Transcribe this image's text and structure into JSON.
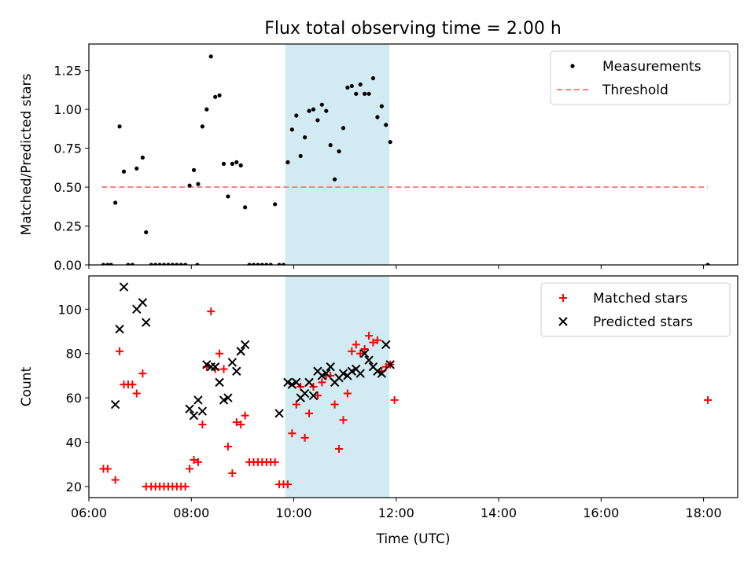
{
  "title": "Flux total observing time = 2.00 h",
  "colors": {
    "measurement": "#000000",
    "threshold": "#ff8080",
    "matched": "#ff0000",
    "predicted": "#000000",
    "shade": "#add8e6"
  },
  "chart_data": [
    {
      "type": "scatter",
      "panel": "top",
      "ylabel": "Matched/Predicted stars",
      "xlabel": "",
      "xlim": [
        "06:00",
        "18:40"
      ],
      "ylim": [
        0,
        1.42
      ],
      "yticks": [
        "0.00",
        "0.25",
        "0.50",
        "0.75",
        "1.00",
        "1.25"
      ],
      "shaded_interval": [
        "09:50",
        "11:52"
      ],
      "legend": {
        "position": "top-right",
        "entries": [
          "Measurements",
          "Threshold"
        ]
      },
      "threshold": {
        "name": "Threshold",
        "value": 0.5,
        "x_range": [
          "06:15",
          "18:05"
        ]
      },
      "series": [
        {
          "name": "Measurements",
          "marker": "dot",
          "points": [
            [
              "06:17",
              0.0
            ],
            [
              "06:22",
              0.0
            ],
            [
              "06:26",
              0.0
            ],
            [
              "06:31",
              0.4
            ],
            [
              "06:36",
              0.89
            ],
            [
              "06:41",
              0.6
            ],
            [
              "06:46",
              0.0
            ],
            [
              "06:51",
              0.0
            ],
            [
              "06:56",
              0.62
            ],
            [
              "07:03",
              0.69
            ],
            [
              "07:07",
              0.21
            ],
            [
              "07:13",
              0.0
            ],
            [
              "07:18",
              0.0
            ],
            [
              "07:23",
              0.0
            ],
            [
              "07:28",
              0.0
            ],
            [
              "07:33",
              0.0
            ],
            [
              "07:38",
              0.0
            ],
            [
              "07:43",
              0.0
            ],
            [
              "07:48",
              0.0
            ],
            [
              "07:53",
              0.0
            ],
            [
              "07:58",
              0.51
            ],
            [
              "08:03",
              0.61
            ],
            [
              "08:07",
              0.0
            ],
            [
              "08:08",
              0.52
            ],
            [
              "08:13",
              0.89
            ],
            [
              "08:18",
              1.0
            ],
            [
              "08:23",
              1.34
            ],
            [
              "08:28",
              1.08
            ],
            [
              "08:33",
              1.09
            ],
            [
              "08:38",
              0.65
            ],
            [
              "08:43",
              0.44
            ],
            [
              "08:48",
              0.65
            ],
            [
              "08:53",
              0.66
            ],
            [
              "08:58",
              0.64
            ],
            [
              "09:03",
              0.37
            ],
            [
              "09:08",
              0.0
            ],
            [
              "09:13",
              0.0
            ],
            [
              "09:18",
              0.0
            ],
            [
              "09:23",
              0.0
            ],
            [
              "09:28",
              0.0
            ],
            [
              "09:33",
              0.0
            ],
            [
              "09:38",
              0.39
            ],
            [
              "09:43",
              0.0
            ],
            [
              "09:48",
              0.0
            ],
            [
              "09:53",
              0.66
            ],
            [
              "09:58",
              0.87
            ],
            [
              "10:03",
              0.96
            ],
            [
              "10:08",
              0.7
            ],
            [
              "10:13",
              0.82
            ],
            [
              "10:18",
              0.99
            ],
            [
              "10:23",
              1.0
            ],
            [
              "10:28",
              0.93
            ],
            [
              "10:33",
              1.03
            ],
            [
              "10:38",
              0.99
            ],
            [
              "10:43",
              0.77
            ],
            [
              "10:48",
              0.55
            ],
            [
              "10:53",
              0.73
            ],
            [
              "10:58",
              0.88
            ],
            [
              "11:03",
              1.14
            ],
            [
              "11:08",
              1.15
            ],
            [
              "11:13",
              1.1
            ],
            [
              "11:18",
              1.16
            ],
            [
              "11:23",
              1.1
            ],
            [
              "11:28",
              1.1
            ],
            [
              "11:33",
              1.2
            ],
            [
              "11:38",
              0.95
            ],
            [
              "11:43",
              1.02
            ],
            [
              "11:48",
              0.9
            ],
            [
              "11:53",
              0.79
            ],
            [
              "18:05",
              0.0
            ]
          ]
        }
      ]
    },
    {
      "type": "scatter",
      "panel": "bottom",
      "xlabel": "Time (UTC)",
      "ylabel": "Count",
      "xlim": [
        "06:00",
        "18:40"
      ],
      "ylim": [
        15,
        115
      ],
      "xticks": [
        "06:00",
        "08:00",
        "10:00",
        "12:00",
        "14:00",
        "16:00",
        "18:00"
      ],
      "yticks": [
        "20",
        "40",
        "60",
        "80",
        "100"
      ],
      "shaded_interval": [
        "09:50",
        "11:52"
      ],
      "legend": {
        "position": "top-right",
        "entries": [
          "Matched stars",
          "Predicted stars"
        ]
      },
      "series": [
        {
          "name": "Matched stars",
          "marker": "plus",
          "points": [
            [
              "06:17",
              28
            ],
            [
              "06:22",
              28
            ],
            [
              "06:31",
              23
            ],
            [
              "06:36",
              81
            ],
            [
              "06:41",
              66
            ],
            [
              "06:46",
              66
            ],
            [
              "06:51",
              66
            ],
            [
              "06:56",
              62
            ],
            [
              "07:03",
              71
            ],
            [
              "07:07",
              20
            ],
            [
              "07:13",
              20
            ],
            [
              "07:18",
              20
            ],
            [
              "07:23",
              20
            ],
            [
              "07:28",
              20
            ],
            [
              "07:33",
              20
            ],
            [
              "07:38",
              20
            ],
            [
              "07:43",
              20
            ],
            [
              "07:48",
              20
            ],
            [
              "07:53",
              20
            ],
            [
              "07:58",
              28
            ],
            [
              "08:03",
              32
            ],
            [
              "08:08",
              31
            ],
            [
              "08:13",
              48
            ],
            [
              "08:18",
              74
            ],
            [
              "08:23",
              99
            ],
            [
              "08:28",
              73
            ],
            [
              "08:33",
              80
            ],
            [
              "08:38",
              73
            ],
            [
              "08:43",
              38
            ],
            [
              "08:48",
              26
            ],
            [
              "08:53",
              49
            ],
            [
              "08:58",
              48
            ],
            [
              "09:03",
              52
            ],
            [
              "09:08",
              31
            ],
            [
              "09:13",
              31
            ],
            [
              "09:18",
              31
            ],
            [
              "09:23",
              31
            ],
            [
              "09:28",
              31
            ],
            [
              "09:33",
              31
            ],
            [
              "09:38",
              31
            ],
            [
              "09:43",
              21
            ],
            [
              "09:48",
              21
            ],
            [
              "09:53",
              21
            ],
            [
              "09:58",
              44
            ],
            [
              "10:03",
              57
            ],
            [
              "10:08",
              65
            ],
            [
              "10:13",
              42
            ],
            [
              "10:18",
              53
            ],
            [
              "10:23",
              65
            ],
            [
              "10:28",
              61
            ],
            [
              "10:33",
              67
            ],
            [
              "10:38",
              70
            ],
            [
              "10:43",
              70
            ],
            [
              "10:48",
              57
            ],
            [
              "10:53",
              37
            ],
            [
              "10:58",
              50
            ],
            [
              "11:03",
              62
            ],
            [
              "11:08",
              81
            ],
            [
              "11:13",
              84
            ],
            [
              "11:18",
              80
            ],
            [
              "11:23",
              82
            ],
            [
              "11:28",
              88
            ],
            [
              "11:33",
              85
            ],
            [
              "11:38",
              86
            ],
            [
              "11:43",
              72
            ],
            [
              "11:48",
              74
            ],
            [
              "11:53",
              75
            ],
            [
              "11:58",
              59
            ],
            [
              "18:05",
              59
            ]
          ]
        },
        {
          "name": "Predicted stars",
          "marker": "x",
          "points": [
            [
              "06:31",
              57
            ],
            [
              "06:36",
              91
            ],
            [
              "06:41",
              110
            ],
            [
              "06:56",
              100
            ],
            [
              "07:03",
              103
            ],
            [
              "07:07",
              94
            ],
            [
              "07:58",
              55
            ],
            [
              "08:03",
              52
            ],
            [
              "08:08",
              59
            ],
            [
              "08:13",
              54
            ],
            [
              "08:18",
              75
            ],
            [
              "08:23",
              74
            ],
            [
              "08:28",
              74
            ],
            [
              "08:33",
              67
            ],
            [
              "08:38",
              59
            ],
            [
              "08:43",
              60
            ],
            [
              "08:48",
              76
            ],
            [
              "08:53",
              72
            ],
            [
              "08:58",
              81
            ],
            [
              "09:03",
              84
            ],
            [
              "09:43",
              53
            ],
            [
              "09:53",
              67
            ],
            [
              "09:58",
              66
            ],
            [
              "10:03",
              67
            ],
            [
              "10:08",
              60
            ],
            [
              "10:13",
              62
            ],
            [
              "10:18",
              67
            ],
            [
              "10:23",
              61
            ],
            [
              "10:28",
              72
            ],
            [
              "10:33",
              70
            ],
            [
              "10:38",
              71
            ],
            [
              "10:43",
              74
            ],
            [
              "10:48",
              67
            ],
            [
              "10:53",
              69
            ],
            [
              "10:58",
              71
            ],
            [
              "11:03",
              70
            ],
            [
              "11:08",
              72
            ],
            [
              "11:13",
              73
            ],
            [
              "11:18",
              71
            ],
            [
              "11:23",
              80
            ],
            [
              "11:28",
              77
            ],
            [
              "11:33",
              74
            ],
            [
              "11:38",
              72
            ],
            [
              "11:43",
              71
            ],
            [
              "11:48",
              84
            ],
            [
              "11:53",
              75
            ]
          ]
        }
      ]
    }
  ]
}
